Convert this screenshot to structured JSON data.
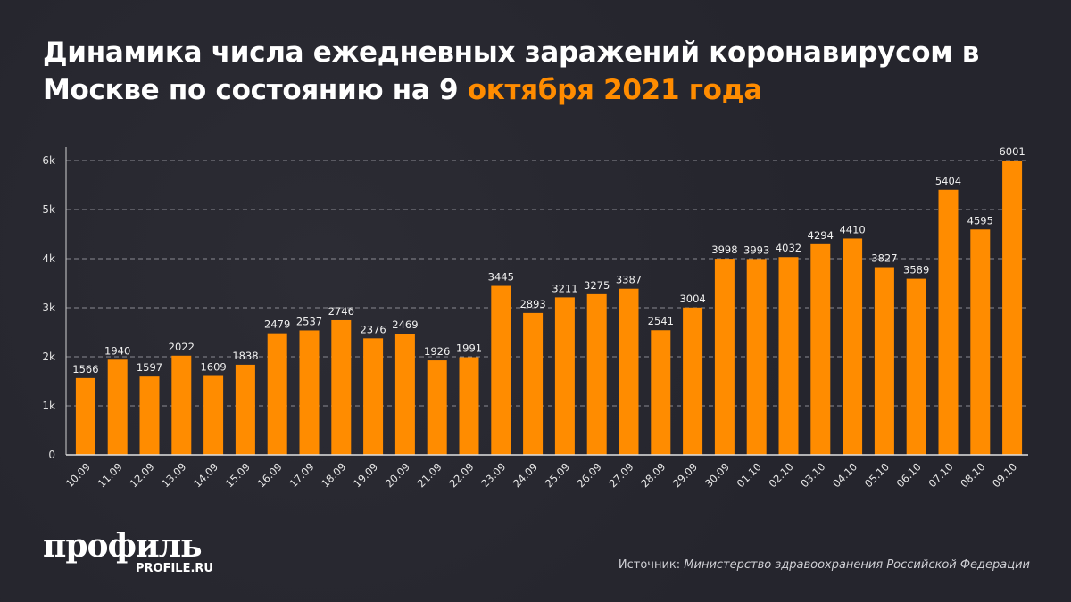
{
  "title_part1": "Динамика числа ежедневных заражений коронавирусом в Москве по состоянию на 9 ",
  "title_highlight": "октября 2021 года",
  "logo": "профиль",
  "logo_sub": "PROFILE.RU",
  "source_label": "Источник: ",
  "source_text": "Министерство здравоохранения Российской Федерации",
  "colors": {
    "bar": "#ff8c00",
    "highlight": "#ff8c00",
    "background": "#25252d"
  },
  "chart_data": {
    "type": "bar",
    "categories": [
      "10.09",
      "11.09",
      "12.09",
      "13.09",
      "14.09",
      "15.09",
      "16.09",
      "17.09",
      "18.09",
      "19.09",
      "20.09",
      "21.09",
      "22.09",
      "23.09",
      "24.09",
      "25.09",
      "26.09",
      "27.09",
      "28.09",
      "29.09",
      "30.09",
      "01.10",
      "02.10",
      "03.10",
      "04.10",
      "05.10",
      "06.10",
      "07.10",
      "08.10",
      "09.10"
    ],
    "values": [
      1566,
      1940,
      1597,
      2022,
      1609,
      1838,
      2479,
      2537,
      2746,
      2376,
      2469,
      1926,
      1991,
      3445,
      2893,
      3211,
      3275,
      3387,
      2541,
      3004,
      3998,
      3993,
      4032,
      4294,
      4410,
      3827,
      3589,
      5404,
      4595,
      6001
    ],
    "yticks": [
      "0",
      "1k",
      "2k",
      "3k",
      "4k",
      "5k",
      "6k"
    ],
    "ylim": [
      0,
      6000
    ],
    "grid": true,
    "data_labels": true
  }
}
